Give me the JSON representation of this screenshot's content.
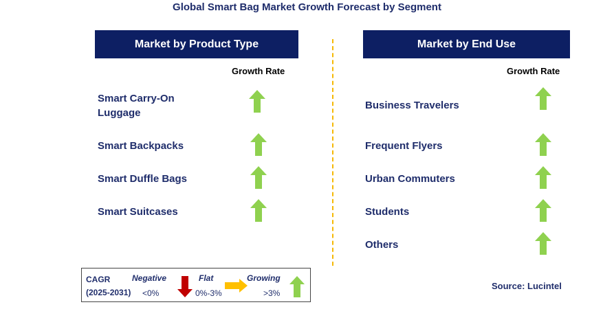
{
  "title": "Global Smart Bag Market Growth Forecast by Segment",
  "left_panel": {
    "header": "Market by Product Type",
    "growth_rate_label": "Growth Rate",
    "items": [
      {
        "label_line1": "Smart Carry-On",
        "label_line2": "Luggage",
        "trend": "growing"
      },
      {
        "label_line1": "Smart Backpacks",
        "label_line2": "",
        "trend": "growing"
      },
      {
        "label_line1": "Smart Duffle Bags",
        "label_line2": "",
        "trend": "growing"
      },
      {
        "label_line1": "Smart Suitcases",
        "label_line2": "",
        "trend": "growing"
      }
    ]
  },
  "right_panel": {
    "header": "Market by End Use",
    "growth_rate_label": "Growth Rate",
    "items": [
      {
        "label": "Business Travelers",
        "trend": "growing"
      },
      {
        "label": "Frequent Flyers",
        "trend": "growing"
      },
      {
        "label": "Urban Commuters",
        "trend": "growing"
      },
      {
        "label": "Students",
        "trend": "growing"
      },
      {
        "label": "Others",
        "trend": "growing"
      }
    ]
  },
  "legend": {
    "cagr_label": "CAGR",
    "period": "(2025-2031)",
    "negative_label": "Negative",
    "negative_value": "<0%",
    "flat_label": "Flat",
    "flat_value": "0%-3%",
    "growing_label": "Growing",
    "growing_value": ">3%"
  },
  "source": "Source: Lucintel",
  "colors": {
    "header_bg": "#0d1f63",
    "text": "#1f2d6b",
    "up_arrow": "#8fd14f",
    "down_arrow": "#c00000",
    "flat_arrow": "#ffc000",
    "divider": "#f5b800"
  }
}
